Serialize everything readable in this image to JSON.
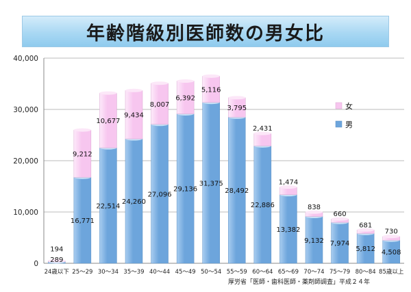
{
  "title": "年齢階級別医師数の男女比",
  "source": "厚労省「医師・歯科医師・薬剤師調査」平成２４年",
  "colors": {
    "male_fill": "#6da5dc",
    "male_highlight": "#a9cdf0",
    "female_fill": "#f7c6ef",
    "female_highlight": "#fdeafa",
    "grid": "#bbbbbb"
  },
  "chart_data": {
    "type": "bar",
    "stacked": true,
    "categories": [
      "24歳以下",
      "25～29",
      "30～34",
      "35～39",
      "40～44",
      "45～49",
      "50～54",
      "55～59",
      "60～64",
      "65～69",
      "70～74",
      "75～79",
      "80～84",
      "85歳以上"
    ],
    "series": [
      {
        "name": "男",
        "values": [
          289,
          16771,
          22514,
          24260,
          27096,
          29136,
          31375,
          28492,
          22886,
          13382,
          9132,
          7974,
          5812,
          4508
        ],
        "labels": [
          "289",
          "16,771",
          "22,514",
          "24,260",
          "27,096",
          "29,136",
          "31,375",
          "28,492",
          "22,886",
          "13,382",
          "9,132",
          "7,974",
          "5,812",
          "4,508"
        ]
      },
      {
        "name": "女",
        "values": [
          194,
          9212,
          10677,
          9434,
          8007,
          6392,
          5116,
          3795,
          2431,
          1474,
          838,
          660,
          681,
          730
        ],
        "labels": [
          "194",
          "9,212",
          "10,677",
          "9,434",
          "8,007",
          "6,392",
          "5,116",
          "3,795",
          "2,431",
          "1,474",
          "838",
          "660",
          "681",
          "730"
        ]
      }
    ],
    "ylim": [
      0,
      40000
    ],
    "yticks": [
      0,
      10000,
      20000,
      30000,
      40000
    ],
    "ytick_labels": [
      "0",
      "10,000",
      "20,000",
      "30,000",
      "40,000"
    ],
    "grid": true,
    "legend": "right"
  }
}
